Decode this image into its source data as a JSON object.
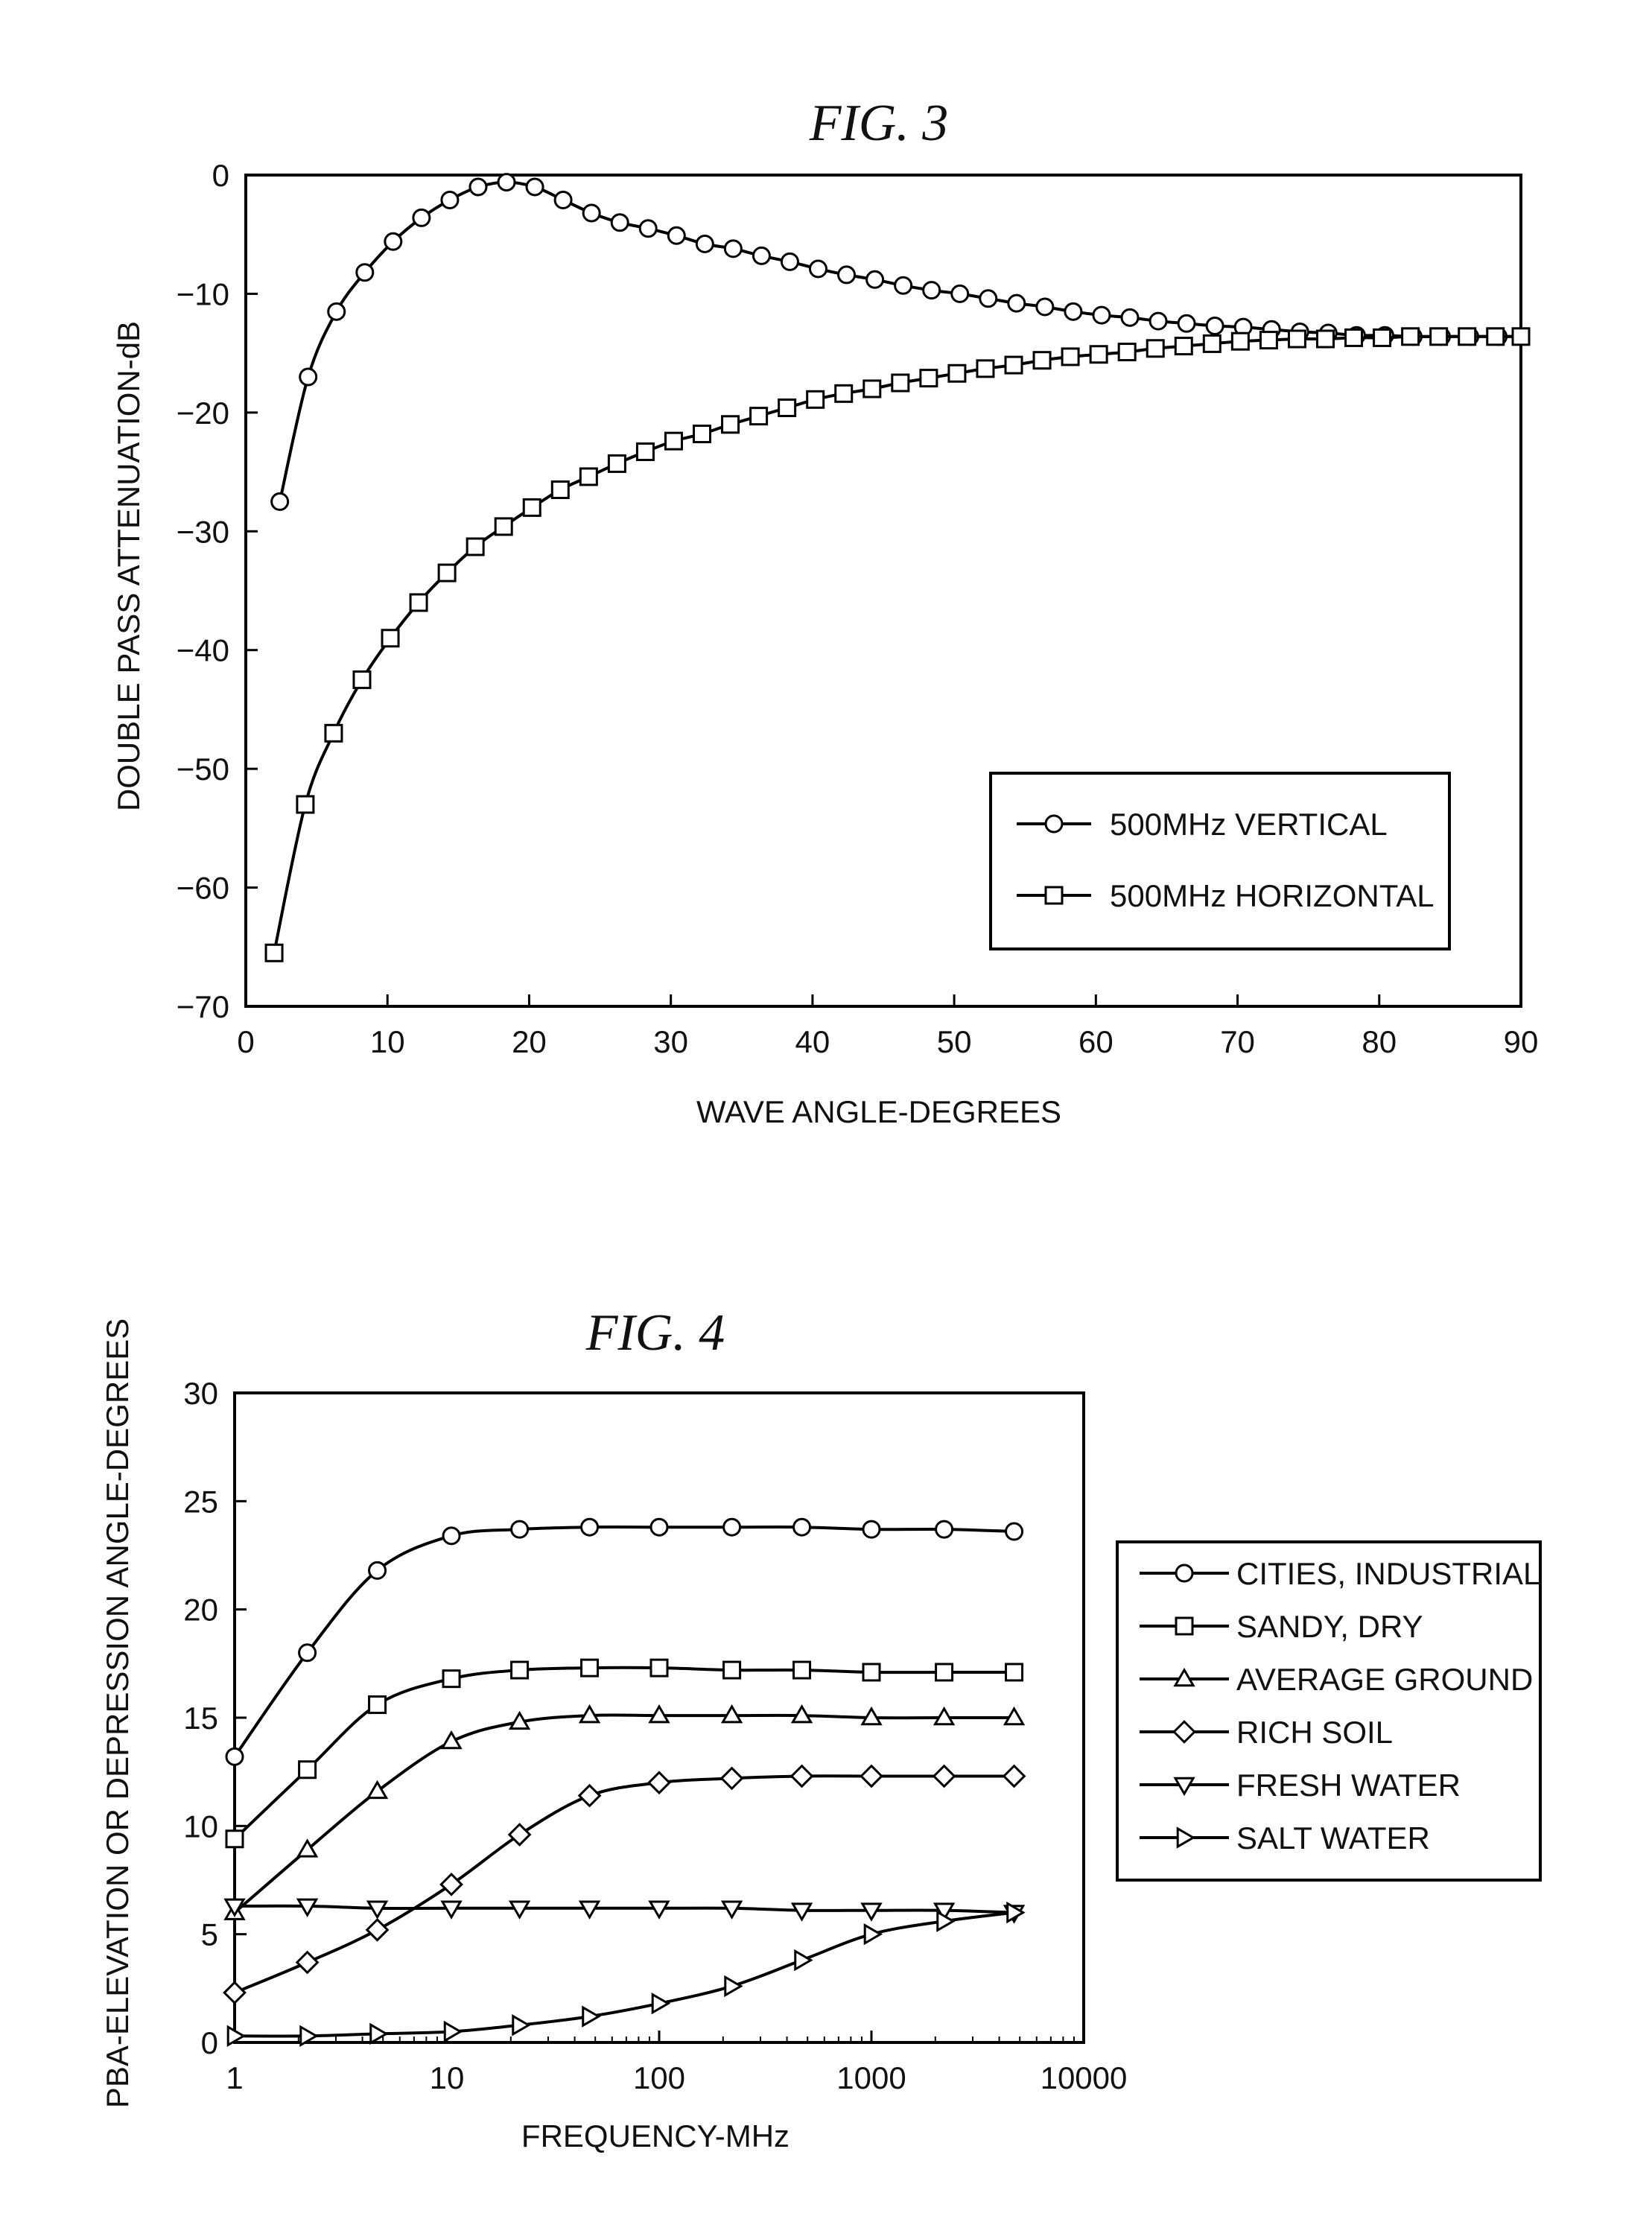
{
  "chart_data": [
    {
      "id": "fig3",
      "type": "line",
      "title": "FIG. 3",
      "xlabel": "WAVE ANGLE-DEGREES",
      "ylabel": "DOUBLE PASS ATTENUATION-dB",
      "xlim": [
        0,
        90
      ],
      "ylim": [
        -70,
        0
      ],
      "x_scale": "linear",
      "xticks": [
        0,
        10,
        20,
        30,
        40,
        50,
        60,
        70,
        80,
        90
      ],
      "yticks": [
        0,
        -10,
        -20,
        -30,
        -40,
        -50,
        -60,
        -70
      ],
      "grid": false,
      "legend_position": "lower-right",
      "series": [
        {
          "name": "500MHz VERTICAL",
          "marker": "circle",
          "x": [
            2.4,
            4.4,
            6.4,
            8.4,
            10.4,
            12.4,
            14.4,
            16.4,
            18.4,
            20.4,
            22.4,
            24.4,
            26.4,
            28.4,
            30.4,
            32.4,
            34.4,
            36.4,
            38.4,
            40.4,
            42.4,
            44.4,
            46.4,
            48.4,
            50.4,
            52.4,
            54.4,
            56.4,
            58.4,
            60.4,
            62.4,
            64.4,
            66.4,
            68.4,
            70.4,
            72.4,
            74.4,
            76.4,
            78.4,
            80.4,
            82.4,
            84.4,
            86.4,
            88.4,
            90
          ],
          "y": [
            -27.5,
            -17,
            -11.5,
            -8.2,
            -5.6,
            -3.6,
            -2.1,
            -1,
            -0.6,
            -1,
            -2.1,
            -3.2,
            -4,
            -4.5,
            -5.1,
            -5.8,
            -6.2,
            -6.8,
            -7.3,
            -7.9,
            -8.4,
            -8.8,
            -9.3,
            -9.7,
            -10,
            -10.4,
            -10.8,
            -11.1,
            -11.5,
            -11.8,
            -12,
            -12.3,
            -12.5,
            -12.7,
            -12.8,
            -13,
            -13.2,
            -13.3,
            -13.5,
            -13.5,
            -13.6,
            -13.6,
            -13.6,
            -13.6,
            -13.6
          ]
        },
        {
          "name": "500MHz HORIZONTAL",
          "marker": "square",
          "x": [
            2,
            4.2,
            6.2,
            8.2,
            10.2,
            12.2,
            14.2,
            16.2,
            18.2,
            20.2,
            22.2,
            24.2,
            26.2,
            28.2,
            30.2,
            32.2,
            34.2,
            36.2,
            38.2,
            40.2,
            42.2,
            44.2,
            46.2,
            48.2,
            50.2,
            52.2,
            54.2,
            56.2,
            58.2,
            60.2,
            62.2,
            64.2,
            66.2,
            68.2,
            70.2,
            72.2,
            74.2,
            76.2,
            78.2,
            80.2,
            82.2,
            84.2,
            86.2,
            88.2,
            90
          ],
          "y": [
            -65.5,
            -53,
            -47,
            -42.5,
            -39,
            -36,
            -33.5,
            -31.3,
            -29.6,
            -28,
            -26.5,
            -25.4,
            -24.3,
            -23.3,
            -22.4,
            -21.8,
            -21,
            -20.3,
            -19.6,
            -18.9,
            -18.4,
            -18,
            -17.5,
            -17.1,
            -16.7,
            -16.3,
            -16,
            -15.6,
            -15.3,
            -15.1,
            -14.9,
            -14.6,
            -14.4,
            -14.2,
            -14,
            -13.9,
            -13.8,
            -13.8,
            -13.7,
            -13.7,
            -13.6,
            -13.6,
            -13.6,
            -13.6,
            -13.6
          ]
        }
      ]
    },
    {
      "id": "fig4",
      "type": "line",
      "title": "FIG. 4",
      "xlabel": "FREQUENCY-MHz",
      "ylabel": "PBA-ELEVATION OR DEPRESSION ANGLE-DEGREES",
      "xlim": [
        1,
        10000
      ],
      "ylim": [
        0,
        30
      ],
      "x_scale": "log",
      "xticks": [
        1,
        10,
        100,
        1000,
        10000
      ],
      "xtick_labels": [
        "1",
        "10",
        "100",
        "1000",
        "10000"
      ],
      "yticks": [
        0,
        5,
        10,
        15,
        20,
        25,
        30
      ],
      "grid": false,
      "legend_position": "right, outside plot",
      "series": [
        {
          "name": "CITIES, INDUSTRIAL",
          "marker": "circle",
          "x": [
            1,
            2.2,
            4.7,
            10.5,
            22,
            47,
            100,
            220,
            470,
            1000,
            2200,
            4700
          ],
          "y": [
            13.2,
            18,
            21.8,
            23.4,
            23.7,
            23.8,
            23.8,
            23.8,
            23.8,
            23.7,
            23.7,
            23.6
          ]
        },
        {
          "name": "SANDY, DRY",
          "marker": "square",
          "x": [
            1,
            2.2,
            4.7,
            10.5,
            22,
            47,
            100,
            220,
            470,
            1000,
            2200,
            4700
          ],
          "y": [
            9.4,
            12.6,
            15.6,
            16.8,
            17.2,
            17.3,
            17.3,
            17.2,
            17.2,
            17.1,
            17.1,
            17.1
          ]
        },
        {
          "name": "AVERAGE GROUND",
          "marker": "triangle-up",
          "x": [
            1,
            2.2,
            4.7,
            10.5,
            22,
            47,
            100,
            220,
            470,
            1000,
            2200,
            4700
          ],
          "y": [
            6,
            8.9,
            11.6,
            13.9,
            14.8,
            15.1,
            15.1,
            15.1,
            15.1,
            15,
            15,
            15
          ]
        },
        {
          "name": "RICH SOIL",
          "marker": "diamond",
          "x": [
            1,
            2.2,
            4.7,
            10.5,
            22,
            47,
            100,
            220,
            470,
            1000,
            2200,
            4700
          ],
          "y": [
            2.3,
            3.7,
            5.2,
            7.3,
            9.6,
            11.4,
            12,
            12.2,
            12.3,
            12.3,
            12.3,
            12.3
          ]
        },
        {
          "name": "FRESH WATER",
          "marker": "triangle-down",
          "x": [
            1,
            2.2,
            4.7,
            10.5,
            22,
            47,
            100,
            220,
            470,
            1000,
            2200,
            4700
          ],
          "y": [
            6.3,
            6.3,
            6.2,
            6.2,
            6.2,
            6.2,
            6.2,
            6.2,
            6.1,
            6.1,
            6.1,
            6.0
          ]
        },
        {
          "name": "SALT WATER",
          "marker": "triangle-right",
          "x": [
            1,
            2.2,
            4.7,
            10.5,
            22,
            47,
            100,
            220,
            470,
            1000,
            2200,
            4700
          ],
          "y": [
            0.3,
            0.3,
            0.4,
            0.5,
            0.8,
            1.2,
            1.8,
            2.6,
            3.8,
            5,
            5.6,
            6.0
          ]
        }
      ]
    }
  ]
}
